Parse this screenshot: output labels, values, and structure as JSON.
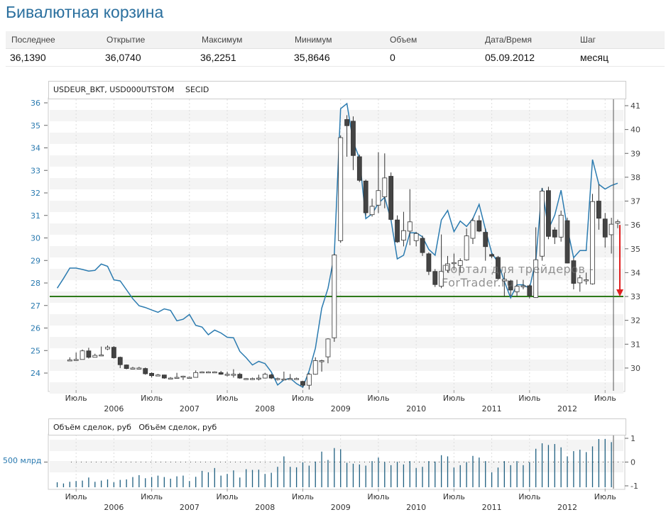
{
  "title": "Бивалютная корзина",
  "quote_table": {
    "headers": [
      "Последнее",
      "Открытие",
      "Максимум",
      "Минимум",
      "Объем",
      "Дата/Время",
      "Шаг"
    ],
    "values": [
      "36,1390",
      "36,0740",
      "36,2251",
      "35,8646",
      "0",
      "05.09.2012",
      "месяц"
    ]
  },
  "main_panel": {
    "header": "USDEUR_BKT, USD000UTSTOM",
    "header_suffix": "SECID",
    "watermark": "Портал для трейдеров - ForTrader.ru"
  },
  "volume_panel": {
    "header": "Объём сделок, руб   Объём сделок, руб",
    "left_label": "500 млрд"
  },
  "colors": {
    "title": "#2a6f9e",
    "line": "#2b7bb0",
    "candle_down": "#444444",
    "candle_up": "#ffffff",
    "support": "#2e7a1a",
    "arrow": "#e02020",
    "volume": "#1f5f80"
  },
  "chart_data": [
    {
      "type": "candlestick+line",
      "x_ticks": {
        "month_label": "Июль",
        "years": [
          "2006",
          "2007",
          "2008",
          "2009",
          "2010",
          "2011",
          "2012"
        ]
      },
      "left_axis": {
        "ticks": [
          24,
          25,
          26,
          27,
          28,
          29,
          30,
          31,
          32,
          33,
          34,
          35,
          36
        ],
        "range": [
          23.3,
          36.2
        ]
      },
      "right_axis": {
        "ticks": [
          30,
          31,
          32,
          33,
          34,
          35,
          36,
          37,
          38,
          39,
          40,
          41
        ],
        "range": [
          29.2,
          41.3
        ]
      },
      "grid": true,
      "series": [
        {
          "name": "USDEUR_BKT",
          "type": "candlestick",
          "axis": "right",
          "start": "2005-06",
          "ohlc": [
            [
              30.34,
              30.45,
              30.3,
              30.34
            ],
            [
              30.34,
              30.65,
              30.3,
              30.36
            ],
            [
              30.36,
              30.78,
              30.36,
              30.72
            ],
            [
              30.72,
              30.85,
              30.4,
              30.45
            ],
            [
              30.45,
              30.6,
              30.45,
              30.53
            ],
            [
              30.53,
              30.9,
              30.5,
              30.55
            ],
            [
              30.8,
              30.95,
              30.75,
              30.87
            ],
            [
              30.87,
              30.92,
              30.4,
              30.43
            ],
            [
              30.45,
              30.48,
              30.0,
              30.14
            ],
            [
              30.13,
              30.15,
              29.95,
              29.98
            ],
            [
              29.98,
              30.05,
              29.95,
              30.0
            ],
            [
              30.0,
              30.05,
              29.95,
              30.0
            ],
            [
              29.98,
              30.02,
              29.72,
              29.76
            ],
            [
              29.78,
              29.82,
              29.6,
              29.68
            ],
            [
              29.68,
              29.75,
              29.68,
              29.71
            ],
            [
              29.71,
              29.72,
              29.55,
              29.58
            ],
            [
              29.58,
              29.62,
              29.55,
              29.58
            ],
            [
              29.58,
              29.8,
              29.55,
              29.61
            ],
            [
              29.64,
              29.68,
              29.5,
              29.66
            ],
            [
              29.61,
              29.64,
              29.58,
              29.61
            ],
            [
              29.61,
              29.9,
              29.6,
              29.81
            ],
            [
              29.84,
              29.86,
              29.82,
              29.84
            ],
            [
              29.84,
              29.86,
              29.82,
              29.84
            ],
            [
              29.84,
              29.86,
              29.82,
              29.84
            ],
            [
              29.81,
              29.88,
              29.72,
              29.74
            ],
            [
              29.74,
              29.85,
              29.65,
              29.74
            ],
            [
              29.74,
              29.95,
              29.6,
              29.74
            ],
            [
              29.74,
              29.8,
              29.55,
              29.58
            ],
            [
              29.56,
              29.58,
              29.5,
              29.56
            ],
            [
              29.56,
              29.6,
              29.5,
              29.56
            ],
            [
              29.58,
              29.72,
              29.48,
              29.58
            ],
            [
              29.58,
              29.8,
              29.56,
              29.74
            ],
            [
              29.71,
              29.76,
              29.54,
              29.58
            ],
            [
              29.56,
              29.6,
              29.48,
              29.56
            ],
            [
              29.54,
              29.85,
              29.52,
              29.54
            ],
            [
              29.56,
              29.75,
              29.52,
              29.56
            ],
            [
              29.56,
              29.6,
              29.52,
              29.56
            ],
            [
              29.44,
              29.46,
              29.2,
              29.28
            ],
            [
              29.28,
              29.8,
              29.1,
              29.74
            ],
            [
              29.74,
              30.45,
              29.72,
              30.31
            ],
            [
              30.31,
              30.35,
              29.85,
              30.31
            ],
            [
              30.47,
              31.25,
              30.2,
              31.22
            ],
            [
              31.27,
              34.8,
              31.1,
              34.74
            ],
            [
              35.34,
              39.75,
              35.25,
              39.66
            ],
            [
              40.42,
              40.6,
              38.86,
              40.16
            ],
            [
              40.35,
              40.55,
              38.3,
              38.91
            ],
            [
              38.86,
              38.95,
              37.8,
              37.87
            ],
            [
              37.84,
              37.9,
              36.4,
              36.51
            ],
            [
              36.43,
              37.1,
              36.35,
              36.78
            ],
            [
              36.83,
              39.05,
              36.5,
              37.44
            ],
            [
              37.18,
              39.0,
              36.7,
              37.97
            ],
            [
              38.04,
              38.2,
              36.2,
              36.23
            ],
            [
              36.21,
              36.4,
              35.25,
              35.29
            ],
            [
              35.36,
              36.55,
              35.1,
              35.76
            ],
            [
              35.74,
              37.5,
              35.15,
              36.13
            ],
            [
              35.34,
              35.7,
              35.1,
              35.64
            ],
            [
              35.44,
              35.55,
              34.7,
              34.84
            ],
            [
              34.79,
              34.85,
              33.9,
              34.05
            ],
            [
              34.05,
              34.15,
              33.4,
              33.5
            ],
            [
              33.43,
              35.6,
              33.35,
              34.05
            ],
            [
              34.1,
              34.7,
              34.0,
              34.37
            ],
            [
              34.42,
              34.8,
              34.1,
              34.42
            ],
            [
              34.3,
              34.6,
              34.0,
              34.5
            ],
            [
              34.53,
              35.85,
              34.5,
              35.54
            ],
            [
              35.44,
              36.3,
              35.2,
              36.18
            ],
            [
              36.18,
              36.4,
              35.7,
              35.74
            ],
            [
              35.69,
              35.85,
              34.5,
              35.09
            ],
            [
              34.76,
              34.8,
              34.6,
              34.69
            ],
            [
              34.64,
              34.7,
              33.7,
              33.75
            ],
            [
              33.65,
              34.0,
              33.0,
              33.72
            ],
            [
              33.65,
              33.7,
              33.0,
              33.27
            ],
            [
              33.2,
              33.7,
              33.0,
              33.43
            ],
            [
              33.45,
              33.7,
              33.3,
              33.45
            ],
            [
              33.45,
              33.5,
              32.92,
              33.04
            ],
            [
              32.96,
              35.9,
              32.95,
              34.54
            ],
            [
              34.69,
              37.55,
              34.5,
              37.42
            ],
            [
              37.44,
              37.6,
              35.4,
              35.52
            ],
            [
              35.79,
              35.9,
              35.2,
              35.49
            ],
            [
              35.49,
              36.6,
              35.3,
              36.41
            ],
            [
              36.18,
              36.3,
              34.4,
              34.4
            ],
            [
              34.5,
              34.6,
              33.3,
              33.55
            ],
            [
              33.57,
              33.9,
              33.2,
              33.78
            ],
            [
              33.7,
              34.0,
              33.5,
              33.7
            ],
            [
              33.53,
              37.3,
              33.5,
              36.98
            ],
            [
              37.0,
              37.7,
              35.8,
              36.28
            ],
            [
              36.25,
              36.5,
              35.05,
              35.49
            ],
            [
              35.59,
              36.3,
              34.8,
              36.03
            ],
            [
              36.074,
              36.2251,
              35.8646,
              36.139
            ]
          ]
        },
        {
          "name": "USD000UTSTOM",
          "type": "line",
          "axis": "left",
          "start": "2005-04",
          "values": [
            27.77,
            28.2,
            28.66,
            28.66,
            28.6,
            28.53,
            28.56,
            28.84,
            28.74,
            28.14,
            28.09,
            27.7,
            27.3,
            26.99,
            26.91,
            26.8,
            26.7,
            26.85,
            26.78,
            26.32,
            26.39,
            26.6,
            26.12,
            26.04,
            25.7,
            25.91,
            25.78,
            25.59,
            25.57,
            24.96,
            24.68,
            24.36,
            24.52,
            24.42,
            24.05,
            23.47,
            23.7,
            23.77,
            23.53,
            23.37,
            24.1,
            25.1,
            26.88,
            27.77,
            29.23,
            35.74,
            35.97,
            34.27,
            33.53,
            30.86,
            31.07,
            31.54,
            31.8,
            30.8,
            29.07,
            29.23,
            30.23,
            30.23,
            30.05,
            29.49,
            29.23,
            30.8,
            31.22,
            30.28,
            30.75,
            30.51,
            30.86,
            31.49,
            30.38,
            29.33,
            28.91,
            28.07,
            27.34,
            27.92,
            27.92,
            27.76,
            29.02,
            32.22,
            30.38,
            31.01,
            32.12,
            30.44,
            29.12,
            29.44,
            29.44,
            33.48,
            32.38,
            32.17,
            32.33,
            32.43
          ]
        }
      ],
      "support_level": {
        "value": 33,
        "axis": "right"
      },
      "arrow": {
        "from": 36,
        "to": 33,
        "axis": "right"
      }
    },
    {
      "type": "bar",
      "right_axis": {
        "ticks": [
          "1",
          "0",
          "-1"
        ],
        "values": [
          1,
          0,
          -1
        ]
      },
      "start": "2005-04",
      "values": [
        -0.85,
        -0.9,
        -0.83,
        -0.8,
        -0.78,
        -0.65,
        -0.83,
        -0.78,
        -0.73,
        -0.85,
        -0.75,
        -0.73,
        -0.63,
        -0.55,
        -0.68,
        -0.63,
        -0.57,
        -0.63,
        -0.7,
        -0.6,
        -0.57,
        -0.8,
        -0.62,
        -0.37,
        -0.43,
        -0.25,
        -0.57,
        -0.5,
        -0.35,
        -0.65,
        -0.3,
        -0.33,
        -0.32,
        -0.5,
        -0.45,
        -0.2,
        0.24,
        -0.2,
        -0.22,
        -0.01,
        -0.15,
        0.02,
        0.44,
        0.09,
        0.59,
        0.54,
        -0.03,
        -0.07,
        -0.1,
        -0.15,
        0.04,
        0.19,
        0.0,
        -0.13,
        0.01,
        -0.1,
        0.04,
        -0.25,
        -0.2,
        0.04,
        0.02,
        0.29,
        0.24,
        -0.23,
        -0.13,
        0.0,
        0.26,
        0.19,
        0.04,
        -0.43,
        -0.23,
        0.04,
        -0.13,
        0.04,
        -0.13,
        0.0,
        0.56,
        0.79,
        0.72,
        0.76,
        0.62,
        0.24,
        0.46,
        0.52,
        0.42,
        0.66,
        0.97,
        0.97,
        0.84
      ]
    }
  ]
}
